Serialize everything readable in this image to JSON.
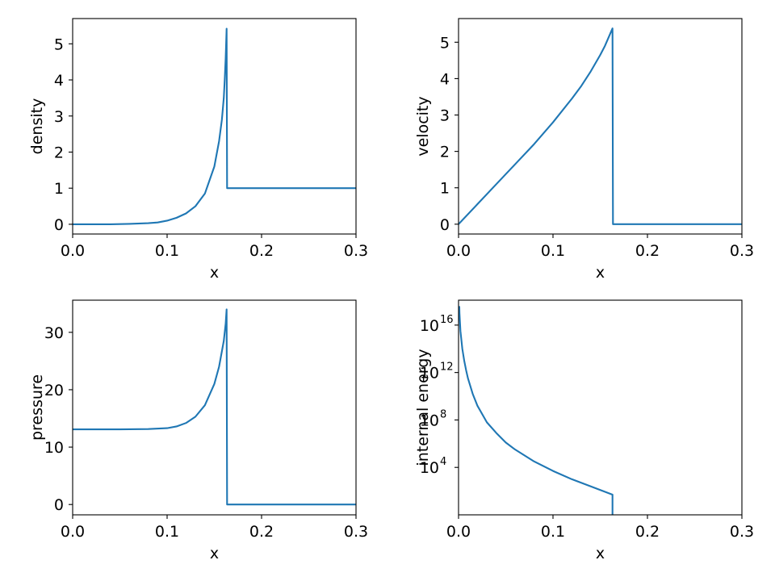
{
  "chart_data": [
    {
      "type": "line",
      "xlabel": "x",
      "ylabel": "density",
      "xlim": [
        0.0,
        0.3
      ],
      "ylim": [
        -0.27,
        5.7
      ],
      "yscale": "linear",
      "xticks": [
        "0.0",
        "0.1",
        "0.2",
        "0.3"
      ],
      "yticks": [
        "0",
        "1",
        "2",
        "3",
        "4",
        "5"
      ],
      "grid": false,
      "color": "#1f77b4",
      "series": [
        {
          "x": [
            0.0,
            0.02,
            0.04,
            0.06,
            0.08,
            0.09,
            0.1,
            0.11,
            0.12,
            0.13,
            0.14,
            0.15,
            0.155,
            0.158,
            0.16,
            0.161,
            0.162,
            0.1625,
            0.163,
            0.1635,
            0.165,
            0.2,
            0.25,
            0.3
          ],
          "values": [
            0.0,
            0.0,
            0.0,
            0.01,
            0.03,
            0.05,
            0.1,
            0.18,
            0.3,
            0.5,
            0.85,
            1.6,
            2.3,
            2.9,
            3.5,
            4.0,
            4.6,
            5.0,
            5.42,
            1.0,
            1.0,
            1.0,
            1.0,
            1.0
          ]
        }
      ]
    },
    {
      "type": "line",
      "xlabel": "x",
      "ylabel": "velocity",
      "xlim": [
        0.0,
        0.3
      ],
      "ylim": [
        -0.27,
        5.65
      ],
      "yscale": "linear",
      "xticks": [
        "0.0",
        "0.1",
        "0.2",
        "0.3"
      ],
      "yticks": [
        "0",
        "1",
        "2",
        "3",
        "4",
        "5"
      ],
      "grid": false,
      "color": "#1f77b4",
      "series": [
        {
          "x": [
            0.0,
            0.02,
            0.04,
            0.06,
            0.08,
            0.1,
            0.12,
            0.13,
            0.14,
            0.15,
            0.155,
            0.16,
            0.163,
            0.1635,
            0.165,
            0.2,
            0.25,
            0.3
          ],
          "values": [
            0.0,
            0.55,
            1.1,
            1.65,
            2.2,
            2.8,
            3.45,
            3.8,
            4.2,
            4.65,
            4.9,
            5.2,
            5.38,
            0.0,
            0.0,
            0.0,
            0.0,
            0.0
          ]
        }
      ]
    },
    {
      "type": "line",
      "xlabel": "x",
      "ylabel": "pressure",
      "xlim": [
        0.0,
        0.3
      ],
      "ylim": [
        -1.8,
        35.6
      ],
      "yscale": "linear",
      "xticks": [
        "0.0",
        "0.1",
        "0.2",
        "0.3"
      ],
      "yticks": [
        "0",
        "10",
        "20",
        "30"
      ],
      "grid": false,
      "color": "#1f77b4",
      "series": [
        {
          "x": [
            0.0,
            0.05,
            0.08,
            0.1,
            0.11,
            0.12,
            0.13,
            0.14,
            0.15,
            0.155,
            0.16,
            0.162,
            0.163,
            0.1635,
            0.165,
            0.2,
            0.25,
            0.3
          ],
          "values": [
            13.1,
            13.1,
            13.15,
            13.3,
            13.6,
            14.2,
            15.3,
            17.3,
            21.0,
            24.0,
            28.5,
            31.5,
            34.0,
            0.0,
            0.0,
            0.0,
            0.0,
            0.0
          ]
        }
      ]
    },
    {
      "type": "line",
      "xlabel": "x",
      "ylabel": "internal energy",
      "xlim": [
        0.0,
        0.3
      ],
      "ylim": [
        0.0,
        18.1
      ],
      "yscale": "log",
      "ylim_note": "log10 exponents",
      "xticks": [
        "0.0",
        "0.1",
        "0.2",
        "0.3"
      ],
      "yticks": [
        {
          "base": "10",
          "exp": "4",
          "value": 4
        },
        {
          "base": "10",
          "exp": "8",
          "value": 8
        },
        {
          "base": "10",
          "exp": "12",
          "value": 12
        },
        {
          "base": "10",
          "exp": "16",
          "value": 16
        }
      ],
      "grid": false,
      "color": "#1f77b4",
      "series": [
        {
          "x": [
            0.0008,
            0.001,
            0.002,
            0.004,
            0.006,
            0.008,
            0.01,
            0.015,
            0.02,
            0.03,
            0.04,
            0.05,
            0.06,
            0.08,
            0.1,
            0.12,
            0.14,
            0.163,
            0.163
          ],
          "log10_values": [
            17.6,
            17.0,
            15.5,
            14.0,
            13.0,
            12.2,
            11.5,
            10.2,
            9.2,
            7.8,
            6.9,
            6.1,
            5.5,
            4.5,
            3.7,
            3.0,
            2.4,
            1.7,
            0.0
          ]
        }
      ]
    }
  ]
}
